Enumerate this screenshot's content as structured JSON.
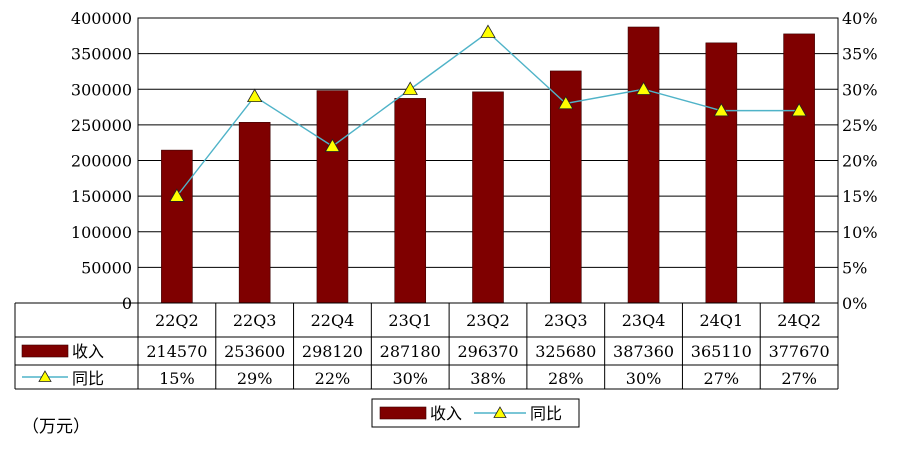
{
  "chart_data": {
    "type": "bar",
    "categories": [
      "22Q2",
      "22Q3",
      "22Q4",
      "23Q1",
      "23Q2",
      "23Q3",
      "23Q4",
      "24Q1",
      "24Q2"
    ],
    "series": [
      {
        "name": "收入",
        "type": "bar",
        "axis": "left",
        "color": "#7f0000",
        "values": [
          214570,
          253600,
          298120,
          287180,
          296370,
          325680,
          387360,
          365110,
          377670
        ]
      },
      {
        "name": "同比",
        "type": "line",
        "axis": "right",
        "color": "#4fb3c8",
        "marker": "yellow-triangle",
        "values": [
          15,
          29,
          22,
          30,
          38,
          28,
          30,
          27,
          27
        ]
      }
    ],
    "table_rows": [
      {
        "label": "收入",
        "cells": [
          "214570",
          "253600",
          "298120",
          "287180",
          "296370",
          "325680",
          "387360",
          "365110",
          "377670"
        ]
      },
      {
        "label": "同比",
        "cells": [
          "15%",
          "29%",
          "22%",
          "30%",
          "38%",
          "28%",
          "30%",
          "27%",
          "27%"
        ]
      }
    ],
    "y_left": {
      "ylim": [
        0,
        400000
      ],
      "ticks": [
        "0",
        "50000",
        "100000",
        "150000",
        "200000",
        "250000",
        "300000",
        "350000",
        "400000"
      ]
    },
    "y_right": {
      "ylim": [
        0,
        40
      ],
      "ticks": [
        "0%",
        "5%",
        "10%",
        "15%",
        "20%",
        "25%",
        "30%",
        "35%",
        "40%"
      ]
    },
    "grid": true,
    "legend": {
      "placement": "bottom",
      "items": [
        "收入",
        "同比"
      ]
    },
    "unit_note": "（万元）"
  },
  "colors": {
    "bar": "#7f0000",
    "line": "#4fb3c8",
    "marker": "#ffff00",
    "grid": "#000000"
  }
}
